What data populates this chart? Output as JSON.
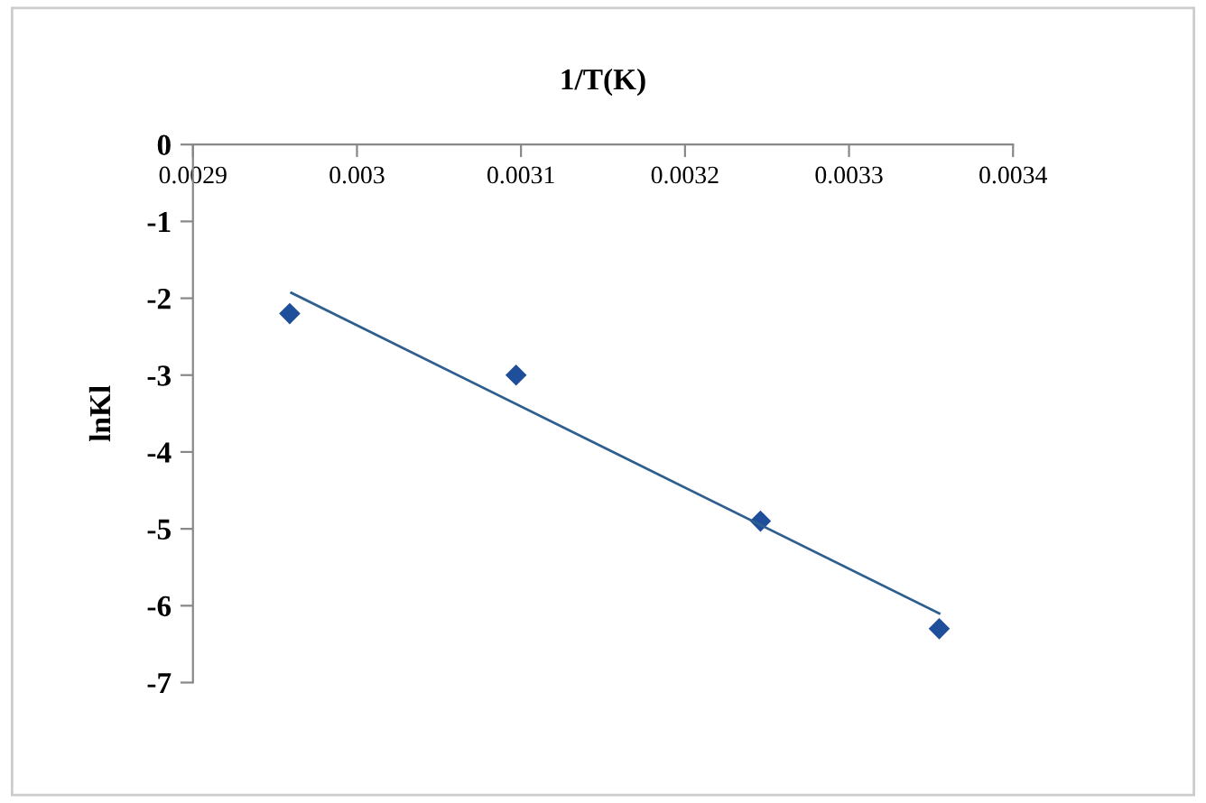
{
  "chart_data": {
    "type": "scatter",
    "xlabel": "1/T(K)",
    "ylabel": "lnKl",
    "marker": "diamond",
    "grid": false,
    "legend": false,
    "xlim": [
      0.0029,
      0.0034
    ],
    "xticks": [
      0.0029,
      0.003,
      0.0031,
      0.0032,
      0.0033,
      0.0034
    ],
    "ylim": [
      -7,
      0
    ],
    "yticks": [
      0,
      -1,
      -2,
      -3,
      -4,
      -5,
      -6,
      -7
    ],
    "series": [
      {
        "color": "#1f4e9a",
        "x": [
          0.002959,
          0.003097,
          0.003246,
          0.003355
        ],
        "values": [
          -2.2,
          -3.0,
          -4.9,
          -6.3
        ]
      },
      {
        "type": "line",
        "color": "#2f5f8f",
        "marker": "none",
        "x": [
          0.00296,
          0.003355
        ],
        "values": [
          -1.93,
          -6.1
        ]
      }
    ]
  }
}
